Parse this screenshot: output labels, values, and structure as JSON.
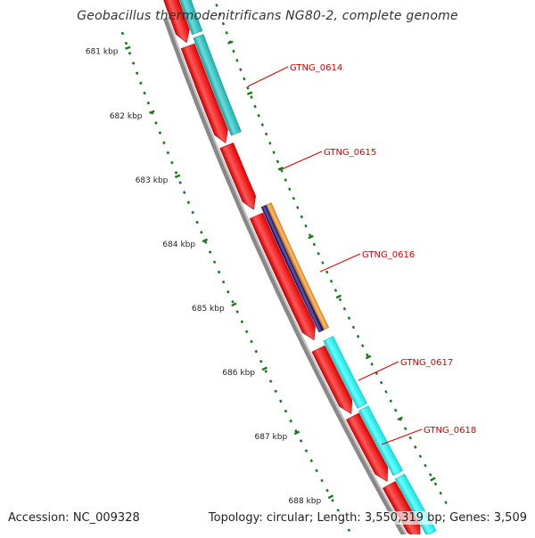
{
  "title": "Geobacillus thermodenitrificans NG80-2, complete genome",
  "footer": {
    "accession": "Accession: NC_009328",
    "topology": "Topology: circular; Length: 3,550,319 bp; Genes: 3,509"
  },
  "colors": {
    "backbone": "#888888",
    "forward_cds": "#ff0000",
    "cyan_feature": "#1ec8c8",
    "bright_cyan_feature": "#18ffff",
    "navy_feature": "#0a0a78",
    "orange_feature": "#ff9a22",
    "tick": "#1a7a1a",
    "gene_label": "#dd0000"
  },
  "ruler": [
    {
      "label": "681 kbp"
    },
    {
      "label": "682 kbp"
    },
    {
      "label": "683 kbp"
    },
    {
      "label": "684 kbp"
    },
    {
      "label": "685 kbp"
    },
    {
      "label": "686 kbp"
    },
    {
      "label": "687 kbp"
    },
    {
      "label": "688 kbp"
    }
  ],
  "genes": [
    {
      "label": "GTNG_0614"
    },
    {
      "label": "GTNG_0615"
    },
    {
      "label": "GTNG_0616"
    },
    {
      "label": "GTNG_0617"
    },
    {
      "label": "GTNG_0618"
    }
  ]
}
